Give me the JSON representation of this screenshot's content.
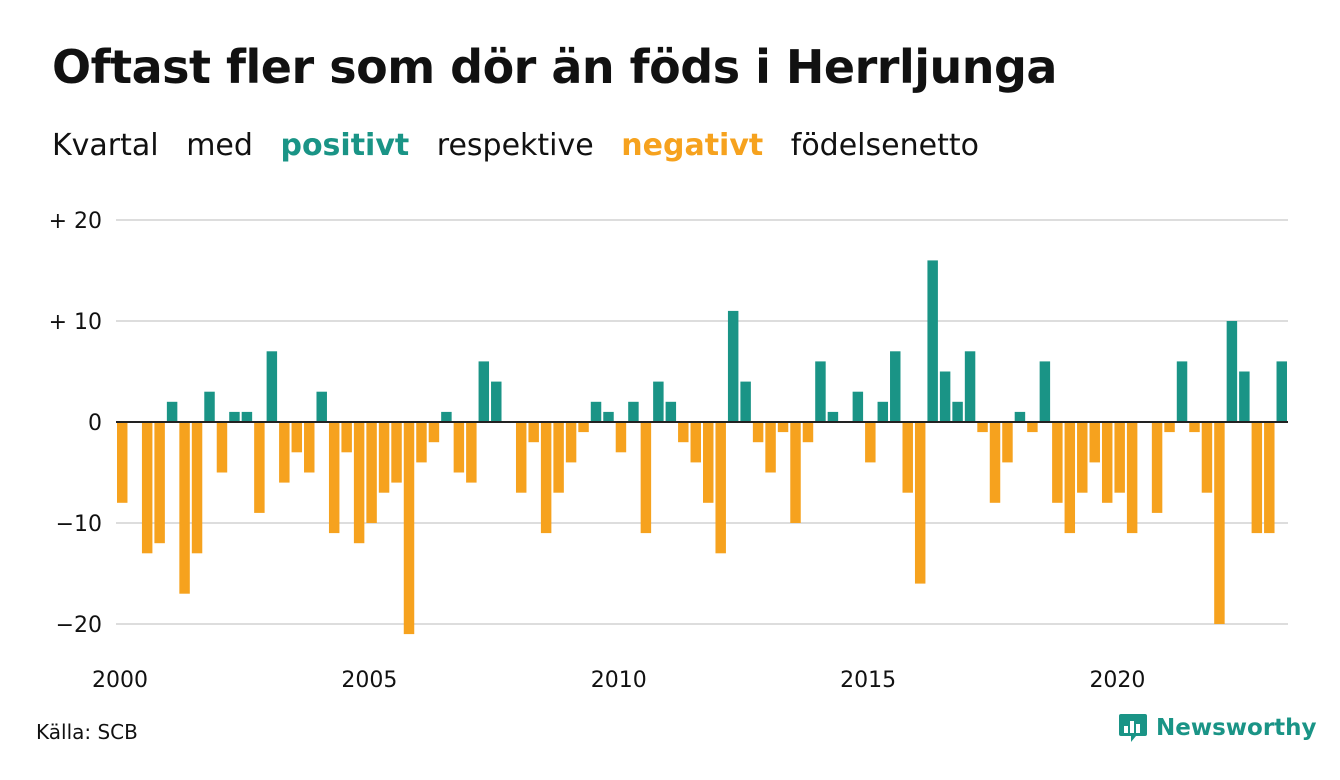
{
  "title": "Oftast fler som dör än föds i Herrljunga",
  "subtitle": {
    "part1": "Kvartal",
    "part2": "med",
    "positive": "positivt",
    "part3": "respektive",
    "negative": "negativt",
    "part4": "födelsenetto"
  },
  "source": "Källa: SCB",
  "logo_text": "Newsworthy",
  "colors": {
    "positive": "#1a9486",
    "negative": "#f6a21e",
    "grid": "#dddddd",
    "text": "#111111"
  },
  "chart_data": {
    "type": "bar",
    "x_start": 2000,
    "periods_per_year": 4,
    "ylim": [
      -22,
      20
    ],
    "yticks": [
      {
        "value": 20,
        "label": "+ 20"
      },
      {
        "value": 10,
        "label": "+ 10"
      },
      {
        "value": 0,
        "label": "0"
      },
      {
        "value": -10,
        "label": "−10"
      },
      {
        "value": -20,
        "label": "−20"
      }
    ],
    "xticks": [
      {
        "value": 2000,
        "label": "2000"
      },
      {
        "value": 2005,
        "label": "2005"
      },
      {
        "value": 2010,
        "label": "2010"
      },
      {
        "value": 2015,
        "label": "2015"
      },
      {
        "value": 2020,
        "label": "2020"
      }
    ],
    "values": [
      -8,
      0,
      -13,
      -12,
      2,
      -17,
      -13,
      3,
      -5,
      1,
      1,
      -9,
      7,
      -6,
      -3,
      -5,
      3,
      -11,
      -3,
      -12,
      -10,
      -7,
      -6,
      -21,
      -4,
      -2,
      1,
      -5,
      -6,
      6,
      4,
      0,
      -7,
      -2,
      -11,
      -7,
      -4,
      -1,
      2,
      1,
      -3,
      2,
      -11,
      4,
      2,
      -2,
      -4,
      -8,
      -13,
      11,
      4,
      -2,
      -5,
      -1,
      -10,
      -2,
      6,
      1,
      0,
      3,
      -4,
      2,
      7,
      -7,
      -16,
      16,
      5,
      2,
      7,
      -1,
      -8,
      -4,
      1,
      -1,
      6,
      -8,
      -11,
      -7,
      -4,
      -8,
      -7,
      -11,
      0,
      -9,
      -1,
      6,
      -1,
      -7,
      -20,
      10,
      5,
      -11,
      -11,
      6
    ]
  }
}
